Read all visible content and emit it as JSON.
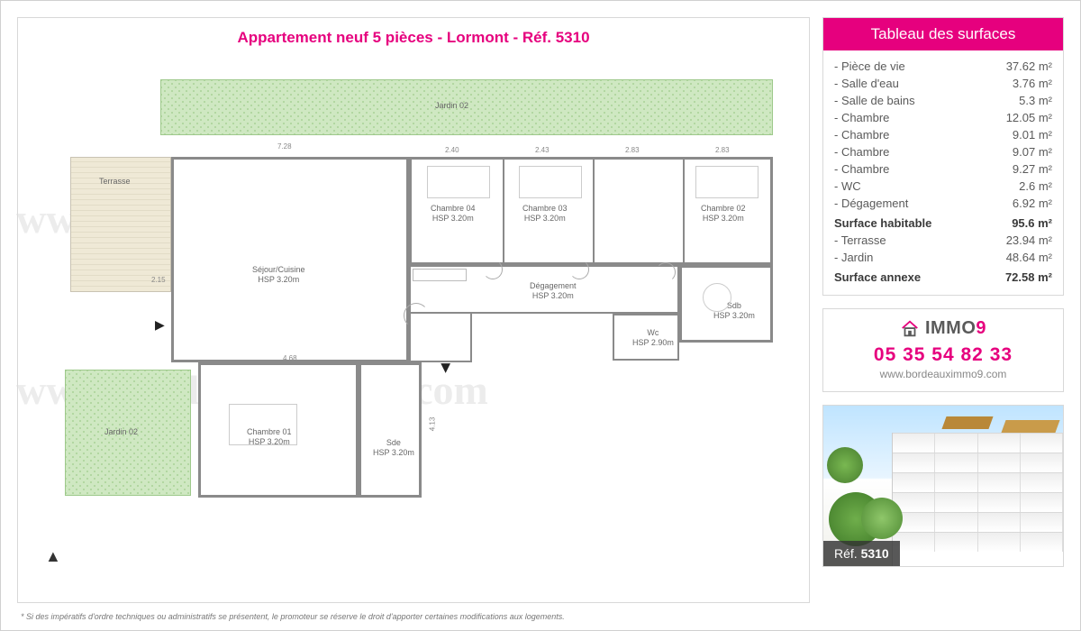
{
  "header": {
    "title": "Appartement neuf 5 pièces - Lormont - Réf. 5310"
  },
  "watermark": "www.bordeauximmo9.com",
  "floorplan": {
    "rooms": {
      "jardin_top": {
        "label": "Jardin 02"
      },
      "terrasse": {
        "label": "Terrasse"
      },
      "sejour": {
        "label": "Séjour/Cuisine",
        "sub": "HSP 3.20m"
      },
      "chambre04": {
        "label": "Chambre 04",
        "sub": "HSP 3.20m"
      },
      "chambre03": {
        "label": "Chambre 03",
        "sub": "HSP 3.20m"
      },
      "chambre02": {
        "label": "Chambre 02",
        "sub": "HSP 3.20m"
      },
      "degagement": {
        "label": "Dégagement",
        "sub": "HSP 3.20m"
      },
      "sdb": {
        "label": "Sdb",
        "sub": "HSP 3.20m"
      },
      "wc": {
        "label": "Wc",
        "sub": "HSP 2.90m"
      },
      "chambre01": {
        "label": "Chambre 01",
        "sub": "HSP 3.20m"
      },
      "sde": {
        "label": "Sde",
        "sub": "HSP 3.20m"
      },
      "jardin_bl": {
        "label": "Jardin 02"
      }
    },
    "dims": {
      "d728": "7.28",
      "d240": "2.40",
      "d243": "2.43",
      "d283a": "2.83",
      "d283b": "2.83",
      "d215": "2.15",
      "d468": "4.68",
      "d413": "4.13"
    }
  },
  "surfaces": {
    "header": "Tableau des surfaces",
    "unit": "m²",
    "rows": [
      {
        "label": "Pièce de vie",
        "value": "37.62"
      },
      {
        "label": "Salle d'eau",
        "value": "3.76"
      },
      {
        "label": "Salle de bains",
        "value": "5.3"
      },
      {
        "label": "Chambre",
        "value": "12.05"
      },
      {
        "label": "Chambre",
        "value": "9.01"
      },
      {
        "label": "Chambre",
        "value": "9.07"
      },
      {
        "label": "Chambre",
        "value": "9.27"
      },
      {
        "label": "WC",
        "value": "2.6"
      },
      {
        "label": "Dégagement",
        "value": "6.92"
      }
    ],
    "total1": {
      "label": "Surface habitable",
      "value": "95.6"
    },
    "annex_rows": [
      {
        "label": "Terrasse",
        "value": "23.94"
      },
      {
        "label": "Jardin",
        "value": "48.64"
      }
    ],
    "total2": {
      "label": "Surface annexe",
      "value": "72.58"
    }
  },
  "contact": {
    "brand_main": "IMMO",
    "brand_accent": "9",
    "phone": "05 35 54 82 33",
    "website": "www.bordeauximmo9.com"
  },
  "thumbnail": {
    "ref_prefix": "Réf.",
    "ref_value": "5310"
  },
  "footnote": "* Si des impératifs d'ordre techniques ou administratifs se présentent, le promoteur se réserve le droit d'apporter certaines modifications aux logements.",
  "colors": {
    "accent": "#e6007e",
    "grid_border": "#d8d8d8",
    "text_muted": "#5a5a5a",
    "wall": "#8a8a8a",
    "garden": "#cfe8c2",
    "terrace": "#efe9d6"
  }
}
